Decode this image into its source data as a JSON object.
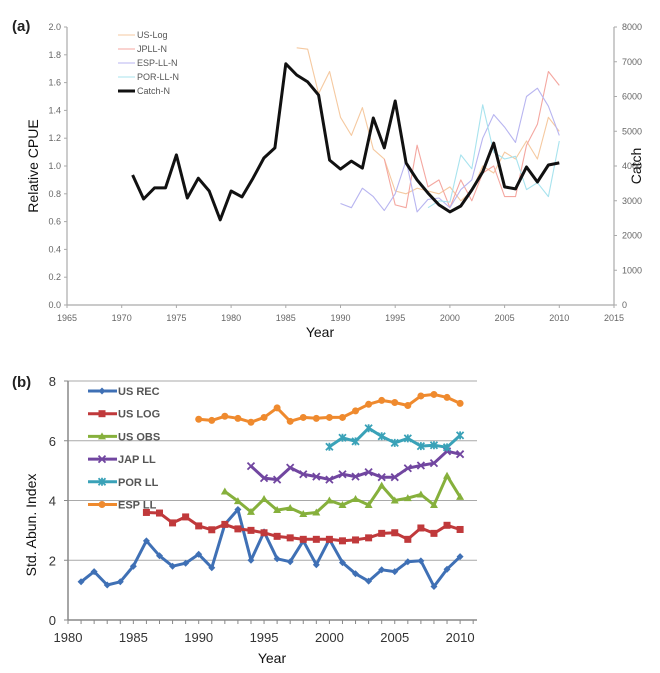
{
  "chart_data": [
    {
      "panel": "(a)",
      "type": "line",
      "title": "",
      "xlabel": "Year",
      "ylabel": "Relative CPUE",
      "y2label": "Catch",
      "xlim": [
        1965,
        2015
      ],
      "ylim": [
        0.0,
        2.0
      ],
      "y2lim": [
        0,
        8000
      ],
      "xticks": [
        "1965",
        "1970",
        "1975",
        "1980",
        "1985",
        "1990",
        "1995",
        "2000",
        "2005",
        "2010",
        "2015"
      ],
      "yticks": [
        "0.0",
        "0.2",
        "0.4",
        "0.6",
        "0.8",
        "1.0",
        "1.2",
        "1.4",
        "1.6",
        "1.8",
        "2.0"
      ],
      "y2ticks": [
        "0",
        "1000",
        "2000",
        "3000",
        "4000",
        "5000",
        "6000",
        "7000",
        "8000"
      ],
      "grid": false,
      "legend_position": "top-left",
      "series": [
        {
          "name": "US-Log",
          "axis": "left",
          "color": "#f5c9a0",
          "x": [
            1986,
            1987,
            1988,
            1989,
            1990,
            1991,
            1992,
            1993,
            1994,
            1995,
            1996,
            1997,
            1998,
            1999,
            2000,
            2001,
            2002,
            2003,
            2004,
            2005,
            2006,
            2007,
            2008,
            2009,
            2010
          ],
          "values": [
            1.85,
            1.84,
            1.52,
            1.68,
            1.35,
            1.22,
            1.42,
            1.12,
            1.05,
            0.82,
            0.8,
            0.84,
            0.82,
            0.8,
            0.85,
            0.75,
            0.82,
            1.0,
            0.95,
            1.1,
            1.05,
            1.18,
            1.05,
            1.35,
            1.25
          ]
        },
        {
          "name": "JPLL-N",
          "axis": "left",
          "color": "#f4a7a0",
          "x": [
            1994,
            1995,
            1996,
            1997,
            1998,
            1999,
            2000,
            2001,
            2002,
            2003,
            2004,
            2005,
            2006,
            2007,
            2008,
            2009,
            2010
          ],
          "values": [
            1.05,
            0.72,
            0.7,
            1.15,
            0.85,
            0.9,
            0.7,
            0.9,
            0.75,
            0.95,
            1.0,
            0.78,
            0.78,
            1.15,
            1.3,
            1.68,
            1.58
          ]
        },
        {
          "name": "ESP-LL-N",
          "axis": "left",
          "color": "#b8b5f0",
          "x": [
            1990,
            1991,
            1992,
            1993,
            1994,
            1995,
            1996,
            1997,
            1998,
            1999,
            2000,
            2001,
            2002,
            2003,
            2004,
            2005,
            2006,
            2007,
            2008,
            2009,
            2010
          ],
          "values": [
            0.73,
            0.7,
            0.84,
            0.78,
            0.68,
            0.8,
            1.04,
            0.67,
            0.76,
            0.77,
            0.7,
            0.83,
            0.9,
            1.2,
            1.37,
            1.28,
            1.17,
            1.5,
            1.56,
            1.43,
            1.22
          ]
        },
        {
          "name": "POR-LL-N",
          "axis": "left",
          "color": "#a8e3ee",
          "x": [
            1998,
            1999,
            2000,
            2001,
            2002,
            2003,
            2004,
            2005,
            2006,
            2007,
            2008,
            2009,
            2010
          ],
          "values": [
            0.7,
            0.75,
            0.74,
            1.08,
            0.98,
            1.44,
            1.1,
            1.05,
            1.07,
            0.83,
            0.88,
            0.78,
            1.18
          ]
        },
        {
          "name": "Catch-N",
          "axis": "right",
          "color": "#111111",
          "x": [
            1971,
            1972,
            1973,
            1974,
            1975,
            1976,
            1977,
            1978,
            1979,
            1980,
            1981,
            1982,
            1983,
            1984,
            1985,
            1986,
            1987,
            1988,
            1989,
            1990,
            1991,
            1992,
            1993,
            1994,
            1995,
            1996,
            1997,
            1998,
            1999,
            2000,
            2001,
            2002,
            2003,
            2004,
            2005,
            2006,
            2007,
            2008,
            2009,
            2010
          ],
          "values": [
            3740,
            3050,
            3370,
            3370,
            4320,
            3080,
            3650,
            3280,
            2450,
            3280,
            3110,
            3650,
            4230,
            4520,
            6940,
            6620,
            6420,
            6040,
            4170,
            3910,
            4140,
            3940,
            5380,
            4520,
            5870,
            4090,
            3600,
            3220,
            2880,
            2680,
            2850,
            3310,
            3830,
            4660,
            3400,
            3340,
            3970,
            3540,
            4030,
            4090
          ]
        }
      ]
    },
    {
      "panel": "(b)",
      "type": "line",
      "title": "",
      "xlabel": "Year",
      "ylabel": "Std. Abun. Index",
      "xlim": [
        1980,
        2011
      ],
      "ylim": [
        0,
        8
      ],
      "xticks": [
        "1980",
        "1985",
        "1990",
        "1995",
        "2000",
        "2005",
        "2010"
      ],
      "yticks": [
        "0",
        "2",
        "4",
        "6",
        "8"
      ],
      "grid": true,
      "legend_position": "top-left",
      "series": [
        {
          "name": "US REC",
          "color": "#3f70b5",
          "marker": "diamond",
          "x": [
            1981,
            1982,
            1983,
            1984,
            1985,
            1986,
            1987,
            1988,
            1989,
            1990,
            1991,
            1992,
            1993,
            1994,
            1995,
            1996,
            1997,
            1998,
            1999,
            2000,
            2001,
            2002,
            2003,
            2004,
            2005,
            2006,
            2007,
            2008,
            2009,
            2010
          ],
          "values": [
            1.28,
            1.62,
            1.17,
            1.28,
            1.8,
            2.65,
            2.15,
            1.8,
            1.9,
            2.2,
            1.75,
            3.2,
            3.7,
            2.0,
            2.95,
            2.05,
            1.95,
            2.65,
            1.85,
            2.7,
            1.92,
            1.55,
            1.3,
            1.68,
            1.62,
            1.95,
            1.98,
            1.12,
            1.7,
            2.12
          ]
        },
        {
          "name": "US LOG",
          "color": "#c0393b",
          "marker": "square",
          "x": [
            1986,
            1987,
            1988,
            1989,
            1990,
            1991,
            1992,
            1993,
            1994,
            1995,
            1996,
            1997,
            1998,
            1999,
            2000,
            2001,
            2002,
            2003,
            2004,
            2005,
            2006,
            2007,
            2008,
            2009,
            2010
          ],
          "values": [
            3.6,
            3.58,
            3.25,
            3.45,
            3.15,
            3.02,
            3.2,
            3.05,
            3.0,
            2.92,
            2.8,
            2.75,
            2.7,
            2.7,
            2.7,
            2.65,
            2.68,
            2.75,
            2.9,
            2.92,
            2.7,
            3.08,
            2.9,
            3.17,
            3.03
          ]
        },
        {
          "name": "US OBS",
          "color": "#86b03c",
          "marker": "triangle",
          "x": [
            1992,
            1993,
            1994,
            1995,
            1996,
            1997,
            1998,
            1999,
            2000,
            2001,
            2002,
            2003,
            2004,
            2005,
            2006,
            2007,
            2008,
            2009,
            2010
          ],
          "values": [
            4.3,
            3.98,
            3.62,
            4.05,
            3.68,
            3.75,
            3.55,
            3.6,
            4.0,
            3.85,
            4.05,
            3.85,
            4.5,
            4.0,
            4.08,
            4.2,
            3.85,
            4.83,
            4.12
          ]
        },
        {
          "name": "JAP LL",
          "color": "#7146a0",
          "marker": "x-cross",
          "x": [
            1994,
            1995,
            1996,
            1997,
            1998,
            1999,
            2000,
            2001,
            2002,
            2003,
            2004,
            2005,
            2006,
            2007,
            2008,
            2009,
            2010
          ],
          "values": [
            5.15,
            4.75,
            4.7,
            5.1,
            4.88,
            4.8,
            4.7,
            4.88,
            4.8,
            4.95,
            4.78,
            4.78,
            5.08,
            5.17,
            5.25,
            5.65,
            5.55
          ]
        },
        {
          "name": "POR LL",
          "color": "#3aa2b8",
          "marker": "x-star",
          "x": [
            2000,
            2001,
            2002,
            2003,
            2004,
            2005,
            2006,
            2007,
            2008,
            2009,
            2010
          ],
          "values": [
            5.8,
            6.1,
            5.98,
            6.42,
            6.15,
            5.93,
            6.08,
            5.82,
            5.85,
            5.78,
            6.18
          ]
        },
        {
          "name": "ESP LL",
          "color": "#ef8a2e",
          "marker": "circle",
          "x": [
            1990,
            1991,
            1992,
            1993,
            1994,
            1995,
            1996,
            1997,
            1998,
            1999,
            2000,
            2001,
            2002,
            2003,
            2004,
            2005,
            2006,
            2007,
            2008,
            2009,
            2010
          ],
          "values": [
            6.72,
            6.68,
            6.82,
            6.75,
            6.62,
            6.78,
            7.1,
            6.65,
            6.78,
            6.75,
            6.78,
            6.78,
            7.0,
            7.22,
            7.35,
            7.28,
            7.18,
            7.5,
            7.55,
            7.45,
            7.25
          ]
        }
      ]
    }
  ]
}
